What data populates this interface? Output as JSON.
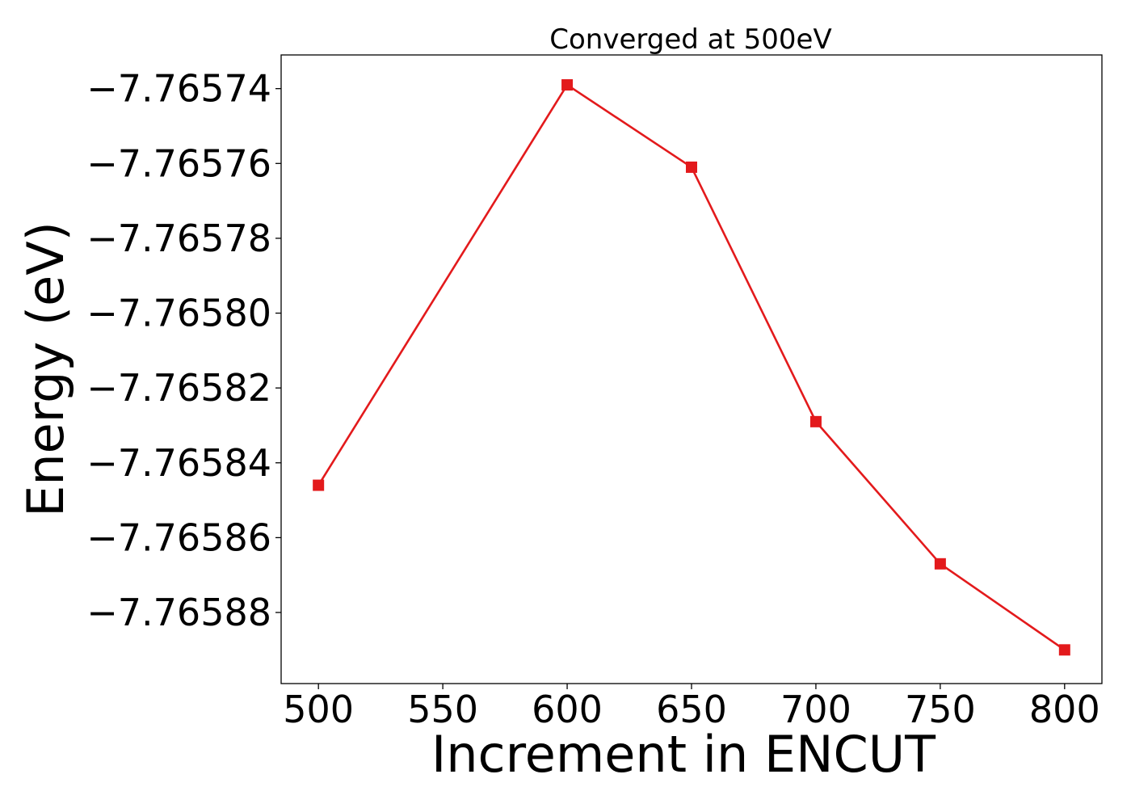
{
  "chart_data": {
    "type": "line",
    "title": "Converged at 500eV",
    "xlabel": "Increment in ENCUT",
    "ylabel": "Energy (eV)",
    "x": [
      500,
      600,
      650,
      700,
      750,
      800
    ],
    "series": [
      {
        "values": [
          -7.765846,
          -7.765739,
          -7.765761,
          -7.765829,
          -7.765867,
          -7.76589
        ],
        "color": "#e31a1c",
        "marker": "square"
      }
    ],
    "xlim": [
      485,
      815
    ],
    "ylim": [
      -7.765899,
      -7.765731
    ],
    "xticks": [
      500,
      550,
      600,
      650,
      700,
      750,
      800
    ],
    "xtick_labels": [
      "500",
      "550",
      "600",
      "650",
      "700",
      "750",
      "800"
    ],
    "yticks": [
      -7.76574,
      -7.76576,
      -7.76578,
      -7.7658,
      -7.76582,
      -7.76584,
      -7.76586,
      -7.76588
    ],
    "ytick_labels": [
      "−7.76574",
      "−7.76576",
      "−7.76578",
      "−7.76580",
      "−7.76582",
      "−7.76584",
      "−7.76586",
      "−7.76588"
    ],
    "grid": false,
    "legend": false
  }
}
